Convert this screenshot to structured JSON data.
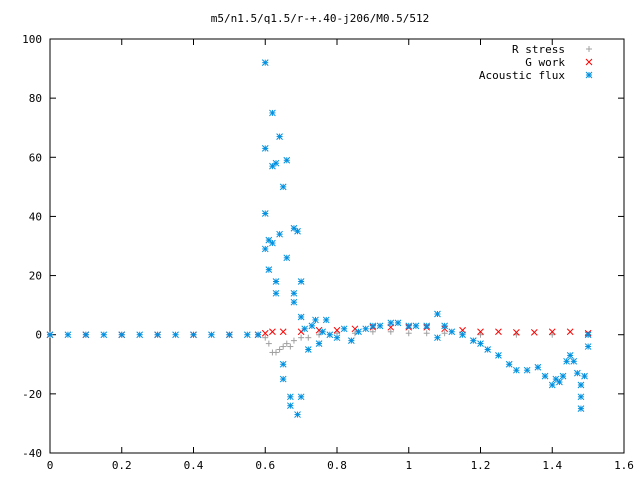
{
  "chart_data": {
    "type": "scatter",
    "title": "m5/n1.5/q1.5/r-+.40-j206/M0.5/512",
    "xlabel": "",
    "ylabel": "",
    "xlim": [
      0,
      1.6
    ],
    "ylim": [
      -40,
      100
    ],
    "x_ticks": [
      "0",
      "0.2",
      "0.4",
      "0.6",
      "0.8",
      "1",
      "1.2",
      "1.4",
      "1.6"
    ],
    "y_ticks": [
      "-40",
      "-20",
      "0",
      "20",
      "40",
      "60",
      "80",
      "100"
    ],
    "grid": false,
    "legend_position": "top-right",
    "series": [
      {
        "name": "R stress",
        "marker": "+",
        "color": "#a0a0a0",
        "points": [
          [
            0.0,
            0
          ],
          [
            0.1,
            0
          ],
          [
            0.2,
            0
          ],
          [
            0.3,
            0
          ],
          [
            0.4,
            0
          ],
          [
            0.5,
            0
          ],
          [
            0.58,
            0
          ],
          [
            0.6,
            -1
          ],
          [
            0.61,
            -3
          ],
          [
            0.62,
            -6
          ],
          [
            0.63,
            -6
          ],
          [
            0.64,
            -5
          ],
          [
            0.65,
            -4
          ],
          [
            0.66,
            -3
          ],
          [
            0.67,
            -4
          ],
          [
            0.68,
            -2
          ],
          [
            0.7,
            -1
          ],
          [
            0.72,
            -1
          ],
          [
            0.75,
            0
          ],
          [
            0.8,
            0.5
          ],
          [
            0.85,
            0.5
          ],
          [
            0.9,
            1
          ],
          [
            0.95,
            1
          ],
          [
            1.0,
            0.5
          ],
          [
            1.05,
            0.5
          ],
          [
            1.1,
            0.5
          ],
          [
            1.2,
            0
          ],
          [
            1.3,
            0
          ],
          [
            1.4,
            0
          ],
          [
            1.5,
            0
          ]
        ]
      },
      {
        "name": "G work",
        "marker": "x",
        "color": "#ff0000",
        "points": [
          [
            0.0,
            0
          ],
          [
            0.1,
            0
          ],
          [
            0.2,
            0
          ],
          [
            0.3,
            0
          ],
          [
            0.4,
            0
          ],
          [
            0.5,
            0
          ],
          [
            0.58,
            0
          ],
          [
            0.6,
            0.5
          ],
          [
            0.62,
            1
          ],
          [
            0.65,
            1
          ],
          [
            0.7,
            1
          ],
          [
            0.75,
            1.5
          ],
          [
            0.8,
            1.5
          ],
          [
            0.85,
            2
          ],
          [
            0.9,
            2.5
          ],
          [
            0.95,
            2.5
          ],
          [
            1.0,
            2.5
          ],
          [
            1.05,
            2.5
          ],
          [
            1.1,
            2
          ],
          [
            1.15,
            1.5
          ],
          [
            1.2,
            1
          ],
          [
            1.25,
            1
          ],
          [
            1.3,
            0.8
          ],
          [
            1.35,
            0.8
          ],
          [
            1.4,
            1
          ],
          [
            1.45,
            1
          ],
          [
            1.5,
            0.5
          ]
        ]
      },
      {
        "name": "Acoustic flux",
        "marker": "*",
        "color": "#0090e0",
        "points": [
          [
            0.0,
            0
          ],
          [
            0.05,
            0
          ],
          [
            0.1,
            0
          ],
          [
            0.15,
            0
          ],
          [
            0.2,
            0
          ],
          [
            0.25,
            0
          ],
          [
            0.3,
            0
          ],
          [
            0.35,
            0
          ],
          [
            0.4,
            0
          ],
          [
            0.45,
            0
          ],
          [
            0.5,
            0
          ],
          [
            0.55,
            0
          ],
          [
            0.58,
            0
          ],
          [
            0.6,
            92
          ],
          [
            0.6,
            63
          ],
          [
            0.6,
            41
          ],
          [
            0.6,
            29
          ],
          [
            0.61,
            32
          ],
          [
            0.61,
            22
          ],
          [
            0.62,
            75
          ],
          [
            0.62,
            57
          ],
          [
            0.62,
            31
          ],
          [
            0.63,
            58
          ],
          [
            0.63,
            18
          ],
          [
            0.63,
            14
          ],
          [
            0.64,
            67
          ],
          [
            0.64,
            34
          ],
          [
            0.65,
            50
          ],
          [
            0.65,
            -10
          ],
          [
            0.65,
            -15
          ],
          [
            0.66,
            59
          ],
          [
            0.66,
            26
          ],
          [
            0.67,
            -24
          ],
          [
            0.67,
            -21
          ],
          [
            0.68,
            36
          ],
          [
            0.68,
            14
          ],
          [
            0.68,
            11
          ],
          [
            0.69,
            35
          ],
          [
            0.69,
            -27
          ],
          [
            0.7,
            6
          ],
          [
            0.7,
            18
          ],
          [
            0.7,
            -21
          ],
          [
            0.71,
            2
          ],
          [
            0.72,
            -5
          ],
          [
            0.73,
            3
          ],
          [
            0.74,
            5
          ],
          [
            0.75,
            -3
          ],
          [
            0.76,
            1
          ],
          [
            0.77,
            5
          ],
          [
            0.78,
            0
          ],
          [
            0.8,
            -1
          ],
          [
            0.82,
            2
          ],
          [
            0.84,
            -2
          ],
          [
            0.86,
            1
          ],
          [
            0.88,
            2
          ],
          [
            0.9,
            3
          ],
          [
            0.92,
            3
          ],
          [
            0.95,
            4
          ],
          [
            0.97,
            4
          ],
          [
            1.0,
            3
          ],
          [
            1.02,
            3
          ],
          [
            1.05,
            3
          ],
          [
            1.08,
            7
          ],
          [
            1.08,
            -1
          ],
          [
            1.1,
            3
          ],
          [
            1.12,
            1
          ],
          [
            1.15,
            0
          ],
          [
            1.18,
            -2
          ],
          [
            1.2,
            -3
          ],
          [
            1.22,
            -5
          ],
          [
            1.25,
            -7
          ],
          [
            1.28,
            -10
          ],
          [
            1.3,
            -12
          ],
          [
            1.33,
            -12
          ],
          [
            1.36,
            -11
          ],
          [
            1.38,
            -14
          ],
          [
            1.4,
            -17
          ],
          [
            1.41,
            -15
          ],
          [
            1.42,
            -16
          ],
          [
            1.43,
            -14
          ],
          [
            1.44,
            -9
          ],
          [
            1.45,
            -7
          ],
          [
            1.46,
            -9
          ],
          [
            1.47,
            -13
          ],
          [
            1.48,
            -17
          ],
          [
            1.48,
            -21
          ],
          [
            1.48,
            -25
          ],
          [
            1.49,
            -14
          ],
          [
            1.5,
            -4
          ],
          [
            1.5,
            0
          ]
        ]
      }
    ]
  }
}
